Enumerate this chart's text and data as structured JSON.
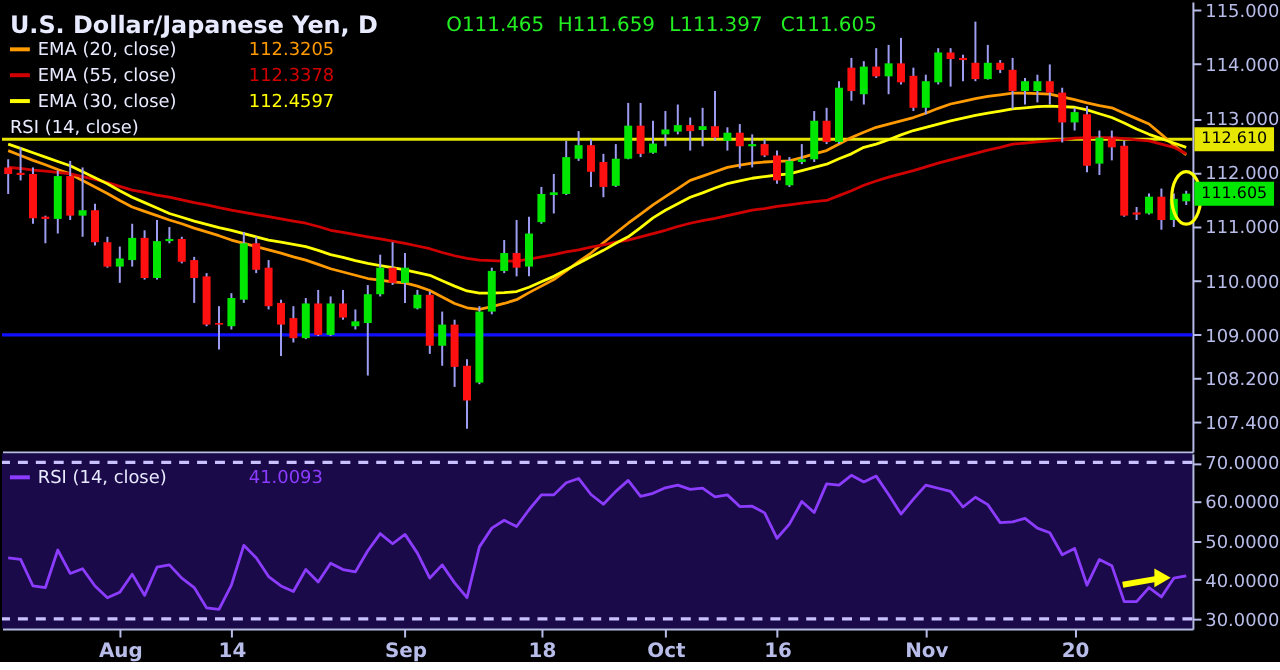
{
  "chart_data": [
    {
      "type": "candlestick",
      "title": "U.S. Dollar/Japanese Yen, D",
      "categories": [
        null,
        null,
        null,
        null,
        null,
        null,
        null,
        null,
        null,
        null,
        null,
        null,
        null,
        null,
        null,
        null,
        null,
        null,
        null,
        null,
        null,
        null,
        null,
        null,
        null,
        null,
        null,
        null,
        null,
        null,
        null,
        null,
        null,
        null,
        null,
        null,
        null,
        null,
        null,
        null,
        null,
        null,
        null,
        null,
        null,
        null,
        null,
        null,
        null,
        null,
        null,
        null,
        null,
        null,
        null,
        null,
        null,
        null,
        null,
        null,
        null,
        null,
        null,
        null,
        null,
        null,
        null,
        null,
        null,
        null,
        null,
        null,
        null,
        null,
        null,
        null,
        null,
        null,
        null,
        null,
        null,
        null,
        null,
        null,
        null,
        null,
        null,
        null,
        null,
        null,
        null,
        null,
        null,
        null,
        null,
        null
      ],
      "ohlc": [
        [
          112.09,
          112.24,
          111.6,
          111.97
        ],
        [
          111.99,
          112.46,
          111.85,
          111.95
        ],
        [
          111.97,
          112.09,
          111.05,
          111.15
        ],
        [
          111.18,
          111.2,
          110.69,
          111.14
        ],
        [
          111.14,
          112.03,
          110.87,
          111.93
        ],
        [
          111.93,
          112.21,
          111.12,
          111.2
        ],
        [
          111.2,
          112.09,
          110.81,
          111.3
        ],
        [
          111.3,
          111.42,
          110.65,
          110.71
        ],
        [
          110.71,
          110.81,
          110.24,
          110.26
        ],
        [
          110.26,
          110.63,
          109.96,
          110.41
        ],
        [
          110.38,
          111.05,
          110.26,
          110.79
        ],
        [
          110.79,
          110.93,
          110.02,
          110.05
        ],
        [
          110.05,
          111.12,
          110.02,
          110.73
        ],
        [
          110.73,
          110.99,
          110.69,
          110.77
        ],
        [
          110.77,
          110.81,
          110.32,
          110.35
        ],
        [
          110.38,
          110.44,
          109.59,
          110.05
        ],
        [
          110.08,
          110.14,
          109.16,
          109.19
        ],
        [
          109.22,
          109.53,
          108.73,
          109.19
        ],
        [
          109.16,
          109.77,
          109.1,
          109.68
        ],
        [
          109.65,
          110.9,
          109.59,
          110.69
        ],
        [
          110.69,
          110.81,
          110.14,
          110.2
        ],
        [
          110.24,
          110.38,
          109.47,
          109.53
        ],
        [
          109.59,
          109.65,
          108.61,
          109.19
        ],
        [
          109.31,
          109.53,
          108.86,
          108.94
        ],
        [
          108.94,
          109.68,
          108.92,
          109.58
        ],
        [
          109.58,
          109.83,
          108.98,
          109.0
        ],
        [
          109.0,
          109.71,
          108.98,
          109.58
        ],
        [
          109.58,
          109.83,
          109.28,
          109.32
        ],
        [
          109.16,
          109.47,
          109.1,
          109.25
        ],
        [
          109.22,
          109.92,
          108.25,
          109.75
        ],
        [
          109.75,
          110.48,
          109.71,
          110.24
        ],
        [
          110.24,
          110.71,
          109.92,
          109.96
        ],
        [
          109.96,
          110.51,
          109.59,
          110.24
        ],
        [
          109.49,
          109.83,
          109.47,
          109.74
        ],
        [
          109.74,
          109.8,
          108.65,
          108.8
        ],
        [
          108.8,
          109.43,
          108.43,
          109.19
        ],
        [
          109.19,
          109.28,
          108.04,
          108.41
        ],
        [
          108.43,
          108.55,
          107.27,
          107.79
        ],
        [
          108.12,
          109.53,
          108.09,
          109.43
        ],
        [
          109.43,
          110.24,
          109.38,
          110.18
        ],
        [
          110.18,
          110.75,
          110.14,
          110.51
        ],
        [
          110.51,
          111.12,
          110.08,
          110.24
        ],
        [
          110.26,
          111.18,
          110.08,
          110.87
        ],
        [
          111.08,
          111.73,
          111.05,
          111.6
        ],
        [
          111.58,
          111.97,
          111.24,
          111.63
        ],
        [
          111.6,
          112.58,
          111.58,
          112.28
        ],
        [
          112.25,
          112.76,
          112.21,
          112.5
        ],
        [
          112.5,
          112.61,
          111.73,
          112.01
        ],
        [
          112.19,
          112.34,
          111.54,
          111.73
        ],
        [
          111.75,
          112.52,
          111.73,
          112.25
        ],
        [
          112.25,
          113.28,
          112.24,
          112.86
        ],
        [
          112.86,
          113.28,
          112.28,
          112.34
        ],
        [
          112.36,
          112.95,
          112.34,
          112.53
        ],
        [
          112.7,
          113.13,
          112.48,
          112.79
        ],
        [
          112.75,
          113.25,
          112.7,
          112.87
        ],
        [
          112.87,
          113.01,
          112.4,
          112.76
        ],
        [
          112.78,
          113.19,
          112.48,
          112.85
        ],
        [
          112.85,
          113.5,
          112.58,
          112.64
        ],
        [
          112.58,
          112.83,
          112.4,
          112.73
        ],
        [
          112.73,
          112.89,
          112.07,
          112.48
        ],
        [
          112.48,
          112.7,
          112.09,
          112.52
        ],
        [
          112.52,
          112.61,
          112.28,
          112.31
        ],
        [
          112.31,
          112.4,
          111.79,
          111.85
        ],
        [
          111.76,
          112.28,
          111.73,
          112.21
        ],
        [
          112.19,
          112.52,
          112.15,
          112.24
        ],
        [
          112.24,
          113.13,
          112.19,
          112.95
        ],
        [
          112.95,
          113.19,
          112.52,
          112.56
        ],
        [
          112.56,
          113.68,
          112.52,
          113.56
        ],
        [
          113.93,
          114.11,
          113.32,
          113.5
        ],
        [
          113.44,
          114.05,
          113.25,
          113.95
        ],
        [
          113.95,
          114.29,
          113.74,
          113.77
        ],
        [
          113.77,
          114.35,
          113.44,
          114.01
        ],
        [
          114.01,
          114.48,
          113.62,
          113.66
        ],
        [
          113.78,
          113.93,
          113.13,
          113.19
        ],
        [
          113.19,
          113.8,
          113.07,
          113.68
        ],
        [
          113.66,
          114.29,
          113.62,
          114.21
        ],
        [
          114.21,
          114.29,
          113.58,
          114.09
        ],
        [
          114.11,
          114.17,
          113.68,
          114.07
        ],
        [
          114.02,
          114.78,
          113.68,
          113.72
        ],
        [
          113.72,
          114.35,
          113.71,
          114.02
        ],
        [
          114.02,
          114.07,
          113.83,
          113.89
        ],
        [
          113.89,
          114.11,
          113.17,
          113.5
        ],
        [
          113.5,
          113.74,
          113.25,
          113.68
        ],
        [
          113.5,
          113.8,
          113.29,
          113.68
        ],
        [
          113.68,
          113.99,
          113.25,
          113.47
        ],
        [
          113.47,
          113.56,
          112.55,
          112.92
        ],
        [
          112.92,
          113.19,
          112.77,
          113.11
        ],
        [
          113.07,
          113.22,
          112.0,
          112.12
        ],
        [
          112.16,
          112.77,
          111.95,
          112.64
        ],
        [
          112.64,
          112.77,
          112.22,
          112.46
        ],
        [
          112.49,
          112.58,
          111.18,
          111.2
        ],
        [
          111.26,
          111.36,
          111.12,
          111.22
        ],
        [
          111.24,
          111.61,
          111.22,
          111.55
        ],
        [
          111.55,
          111.7,
          110.94,
          111.12
        ],
        [
          111.12,
          111.61,
          110.99,
          111.51
        ],
        [
          111.465,
          111.659,
          111.397,
          111.605
        ]
      ],
      "series": [
        {
          "name": "EMA (20, close)",
          "type": "line",
          "color": "#ff9a00",
          "values": [
            112.4,
            112.31,
            112.22,
            112.14,
            112.05,
            111.97,
            111.85,
            111.73,
            111.61,
            111.48,
            111.36,
            111.28,
            111.2,
            111.12,
            111.05,
            110.97,
            110.9,
            110.83,
            110.75,
            110.69,
            110.63,
            110.57,
            110.51,
            110.44,
            110.38,
            110.3,
            110.22,
            110.16,
            110.1,
            110.04,
            110.01,
            109.98,
            109.96,
            109.9,
            109.82,
            109.7,
            109.58,
            109.5,
            109.47,
            109.52,
            109.58,
            109.65,
            109.78,
            109.9,
            110.02,
            110.18,
            110.35,
            110.51,
            110.7,
            110.88,
            111.06,
            111.23,
            111.4,
            111.55,
            111.7,
            111.85,
            111.93,
            112.01,
            112.09,
            112.13,
            112.17,
            112.19,
            112.2,
            112.21,
            112.27,
            112.34,
            112.4,
            112.52,
            112.64,
            112.74,
            112.83,
            112.89,
            112.95,
            113.01,
            113.09,
            113.18,
            113.26,
            113.31,
            113.36,
            113.4,
            113.43,
            113.46,
            113.46,
            113.45,
            113.44,
            113.39,
            113.34,
            113.28,
            113.23,
            113.19,
            113.09,
            112.99,
            112.89,
            112.7,
            112.5,
            112.32
          ]
        },
        {
          "name": "EMA (55, close)",
          "type": "line",
          "color": "#d00000",
          "values": [
            112.09,
            112.07,
            112.04,
            112.02,
            112.0,
            111.97,
            111.92,
            111.87,
            111.81,
            111.74,
            111.67,
            111.63,
            111.58,
            111.54,
            111.49,
            111.44,
            111.4,
            111.35,
            111.3,
            111.26,
            111.22,
            111.18,
            111.14,
            111.1,
            111.06,
            111.0,
            110.93,
            110.89,
            110.85,
            110.81,
            110.77,
            110.73,
            110.69,
            110.64,
            110.59,
            110.52,
            110.46,
            110.41,
            110.38,
            110.37,
            110.36,
            110.36,
            110.4,
            110.44,
            110.48,
            110.53,
            110.57,
            110.62,
            110.66,
            110.71,
            110.75,
            110.81,
            110.87,
            110.93,
            111.0,
            111.06,
            111.11,
            111.15,
            111.2,
            111.25,
            111.3,
            111.33,
            111.37,
            111.4,
            111.43,
            111.46,
            111.48,
            111.57,
            111.66,
            111.76,
            111.84,
            111.91,
            111.97,
            112.03,
            112.1,
            112.17,
            112.23,
            112.29,
            112.35,
            112.41,
            112.46,
            112.52,
            112.54,
            112.56,
            112.58,
            112.6,
            112.63,
            112.64,
            112.64,
            112.64,
            112.62,
            112.6,
            112.58,
            112.52,
            112.46,
            112.34
          ]
        },
        {
          "name": "EMA (30, close)",
          "type": "line",
          "color": "#ffff00",
          "values": [
            112.52,
            112.44,
            112.36,
            112.28,
            112.2,
            112.12,
            112.01,
            111.9,
            111.79,
            111.66,
            111.54,
            111.44,
            111.34,
            111.24,
            111.17,
            111.1,
            111.04,
            110.98,
            110.93,
            110.87,
            110.81,
            110.75,
            110.71,
            110.67,
            110.63,
            110.56,
            110.48,
            110.43,
            110.37,
            110.32,
            110.28,
            110.24,
            110.2,
            110.15,
            110.1,
            110.0,
            109.9,
            109.81,
            109.77,
            109.77,
            109.78,
            109.8,
            109.88,
            109.98,
            110.08,
            110.2,
            110.32,
            110.44,
            110.56,
            110.69,
            110.81,
            110.98,
            111.16,
            111.3,
            111.42,
            111.54,
            111.62,
            111.71,
            111.79,
            111.84,
            111.89,
            111.92,
            111.95,
            111.97,
            112.03,
            112.09,
            112.15,
            112.25,
            112.34,
            112.46,
            112.52,
            112.6,
            112.69,
            112.77,
            112.83,
            112.89,
            112.95,
            113.0,
            113.05,
            113.09,
            113.13,
            113.17,
            113.19,
            113.21,
            113.22,
            113.21,
            113.2,
            113.15,
            113.08,
            113.01,
            112.91,
            112.8,
            112.7,
            112.62,
            112.54,
            112.46
          ]
        }
      ],
      "ylim": [
        106.85,
        115.15
      ],
      "yticks": [
        {
          "value": 115,
          "label": "115.000"
        },
        {
          "value": 114,
          "label": "114.000"
        },
        {
          "value": 113,
          "label": "113.000"
        },
        {
          "value": 112,
          "label": "112.000"
        },
        {
          "value": 111,
          "label": "111.000"
        },
        {
          "value": 110,
          "label": "110.000"
        },
        {
          "value": 109,
          "label": "109.000"
        },
        {
          "value": 108.2,
          "label": "108.200"
        },
        {
          "value": 107.4,
          "label": "107.400"
        }
      ],
      "ref_lines": [
        {
          "axis": "y",
          "value": 112.61,
          "label": "112.610",
          "color": "#e6e600"
        },
        {
          "axis": "y",
          "value": 109,
          "color": "#1010ff"
        }
      ],
      "annotations": [
        "O111.465",
        "H111.659",
        "L111.397",
        "C111.605",
        "112.3205",
        "112.3378",
        "112.4597",
        "111.605",
        "RSI (14, close)"
      ],
      "legend": "top left",
      "tick_labels": "y"
    },
    {
      "type": "line",
      "categories": [
        null,
        null,
        null,
        null,
        null,
        null,
        null,
        null,
        null,
        "Aug",
        null,
        null,
        null,
        null,
        null,
        null,
        null,
        null,
        "14",
        null,
        null,
        null,
        null,
        null,
        null,
        null,
        null,
        null,
        null,
        null,
        null,
        null,
        "Sep",
        null,
        null,
        null,
        null,
        null,
        null,
        null,
        null,
        null,
        null,
        "18",
        null,
        null,
        null,
        null,
        null,
        null,
        null,
        null,
        null,
        "Oct",
        null,
        null,
        null,
        null,
        null,
        null,
        null,
        null,
        "16",
        null,
        null,
        null,
        null,
        null,
        null,
        null,
        null,
        null,
        null,
        null,
        "Nov",
        null,
        null,
        null,
        null,
        null,
        null,
        null,
        null,
        null,
        null,
        null,
        "20",
        null,
        null,
        null,
        null,
        null,
        null,
        null,
        null,
        null
      ],
      "series": [
        {
          "name": "RSI (14, close)",
          "color": "#8c3cff",
          "values": [
            45.6,
            45.2,
            38.4,
            38,
            47.6,
            41.6,
            42.8,
            38.4,
            35.4,
            36.8,
            41.4,
            36,
            43.2,
            43.8,
            40.4,
            38,
            32.8,
            32.4,
            38.6,
            48.8,
            45.6,
            40.8,
            38.4,
            37,
            42.6,
            39.4,
            44.2,
            42.6,
            42,
            47.4,
            51.8,
            49.2,
            51.6,
            46.8,
            40.4,
            43.8,
            39.2,
            35.4,
            48.4,
            53.2,
            55.2,
            53.6,
            57.9,
            61.7,
            61.7,
            64.8,
            65.9,
            61.8,
            59.3,
            62.6,
            65.4,
            61.3,
            62.1,
            63.5,
            64.2,
            63.1,
            63.4,
            61.2,
            61.7,
            58.7,
            58.8,
            57.1,
            50.6,
            54.2,
            60,
            57.2,
            64.5,
            64.2,
            66.7,
            65,
            66.5,
            61.8,
            56.8,
            60.6,
            64.2,
            63.4,
            62.6,
            58.6,
            61.1,
            59.2,
            54.6,
            54.8,
            55.7,
            53.2,
            52,
            46.4,
            48,
            38.6,
            45.2,
            43.6,
            34.4,
            34.4,
            38,
            35.6,
            40.4,
            41.0
          ]
        }
      ],
      "ylim": [
        27.5,
        72.3
      ],
      "yticks": [
        {
          "value": 70,
          "label": "70.0000"
        },
        {
          "value": 60,
          "label": "60.0000"
        },
        {
          "value": 50,
          "label": "50.0000"
        },
        {
          "value": 40,
          "label": "40.0000"
        },
        {
          "value": 30,
          "label": "30.0000"
        }
      ],
      "ref_lines": [
        {
          "axis": "y",
          "value": 70,
          "color": "#c8c0ff",
          "line_style": "dashed"
        },
        {
          "axis": "y",
          "value": 30,
          "color": "#c8c0ff",
          "line_style": "dashed"
        }
      ],
      "annotations": [
        "41.0093"
      ],
      "legend": "top left"
    }
  ]
}
